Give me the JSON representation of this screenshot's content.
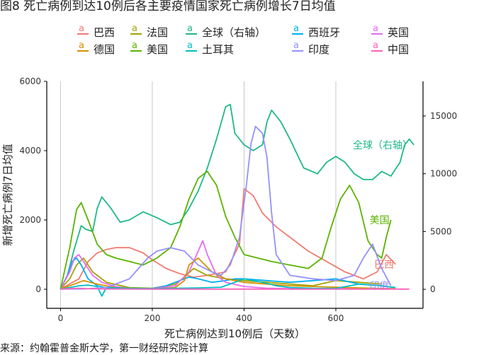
{
  "title": "图8 死亡病例到达10例后各主要疫情国家死亡病例增长7日均值",
  "source": "来源：约翰霍普金斯大学，第一财经研究院计算",
  "chart_data": {
    "type": "line",
    "xlabel": "死亡病例达到10例后（天数）",
    "ylabel": "新增死亡病例7日均值",
    "xlim": [
      -30,
      790
    ],
    "ylim": [
      -550,
      6000
    ],
    "y2lim": [
      -1650,
      18000
    ],
    "xticks": [
      0,
      200,
      400,
      600
    ],
    "yticks": [
      0,
      2000,
      4000,
      6000
    ],
    "y2ticks": [
      0,
      5000,
      10000,
      15000
    ],
    "grid": "vertical",
    "legend_position": "top",
    "series": [
      {
        "name": "巴西",
        "color": "#F07C73",
        "axis": "left",
        "end_label": "巴西",
        "x": [
          0,
          40,
          60,
          80,
          100,
          120,
          150,
          180,
          200,
          230,
          260,
          290,
          320,
          360,
          390,
          400,
          420,
          440,
          470,
          500,
          540,
          580,
          620,
          660,
          690,
          710,
          730
        ],
        "y": [
          5,
          300,
          800,
          1050,
          1150,
          1200,
          1200,
          1050,
          850,
          600,
          450,
          350,
          400,
          500,
          1300,
          2900,
          2700,
          2200,
          1800,
          1500,
          1100,
          800,
          500,
          300,
          500,
          1000,
          720
        ]
      },
      {
        "name": "法国",
        "color": "#A3A500",
        "axis": "left",
        "x": [
          0,
          20,
          35,
          50,
          70,
          100,
          150,
          200,
          250,
          270,
          290,
          320,
          340,
          360,
          400,
          450,
          500,
          550,
          600,
          650,
          700
        ],
        "y": [
          5,
          300,
          700,
          900,
          500,
          200,
          50,
          30,
          150,
          350,
          600,
          400,
          350,
          300,
          250,
          200,
          150,
          100,
          250,
          200,
          150
        ]
      },
      {
        "name": "全球（右轴）",
        "color": "#1FB88A",
        "axis": "right",
        "end_label": "全球（右轴）",
        "x": [
          0,
          15,
          30,
          45,
          55,
          70,
          80,
          90,
          110,
          130,
          150,
          180,
          210,
          240,
          260,
          280,
          300,
          320,
          340,
          360,
          370,
          380,
          400,
          420,
          440,
          450,
          460,
          480,
          500,
          530,
          560,
          580,
          600,
          620,
          640,
          660,
          680,
          700,
          720,
          740,
          750,
          760,
          770
        ],
        "y": [
          20,
          1200,
          3500,
          5500,
          5200,
          5000,
          7000,
          8000,
          7000,
          5800,
          6000,
          6700,
          6200,
          5600,
          5800,
          7000,
          8500,
          10500,
          13000,
          15800,
          16000,
          13500,
          12500,
          12000,
          12500,
          14500,
          15500,
          14500,
          13000,
          10500,
          10000,
          11000,
          11500,
          11000,
          10000,
          9500,
          9500,
          10200,
          9800,
          11000,
          12500,
          13000,
          12500
        ]
      },
      {
        "name": "西班牙",
        "color": "#00B0F6",
        "axis": "left",
        "x": [
          0,
          15,
          25,
          35,
          45,
          60,
          80,
          100,
          150,
          200,
          230,
          260,
          280,
          300,
          330,
          360,
          380,
          400,
          450,
          500,
          550,
          600,
          650,
          700,
          730
        ],
        "y": [
          5,
          400,
          800,
          900,
          700,
          300,
          100,
          40,
          20,
          20,
          100,
          250,
          350,
          300,
          200,
          250,
          300,
          300,
          250,
          200,
          250,
          300,
          150,
          100,
          50
        ]
      },
      {
        "name": "英国",
        "color": "#E76BF3",
        "axis": "left",
        "x": [
          0,
          20,
          30,
          40,
          50,
          70,
          90,
          120,
          150,
          200,
          250,
          280,
          300,
          310,
          320,
          340,
          360,
          400,
          450,
          500,
          550,
          600,
          650,
          700,
          730
        ],
        "y": [
          5,
          500,
          900,
          1000,
          800,
          400,
          200,
          80,
          30,
          20,
          100,
          500,
          1100,
          1400,
          1000,
          400,
          200,
          80,
          30,
          20,
          15,
          20,
          30,
          25,
          20
        ]
      },
      {
        "name": "德国",
        "color": "#D39200",
        "axis": "left",
        "x": [
          0,
          30,
          50,
          80,
          120,
          200,
          250,
          270,
          280,
          300,
          330,
          360,
          400,
          450,
          500,
          550,
          600,
          650,
          700,
          730
        ],
        "y": [
          5,
          150,
          250,
          150,
          50,
          10,
          50,
          250,
          700,
          900,
          500,
          300,
          200,
          150,
          100,
          80,
          60,
          40,
          20,
          15
        ]
      },
      {
        "name": "美国",
        "color": "#5BB300",
        "axis": "left",
        "end_label": "美国",
        "x": [
          0,
          20,
          35,
          45,
          60,
          80,
          100,
          120,
          150,
          180,
          210,
          240,
          260,
          280,
          300,
          320,
          340,
          360,
          380,
          400,
          430,
          460,
          500,
          540,
          570,
          590,
          610,
          630,
          650,
          670,
          690,
          700,
          710,
          720
        ],
        "y": [
          5,
          1200,
          2300,
          2500,
          2000,
          1300,
          1000,
          900,
          800,
          700,
          900,
          1200,
          1800,
          2600,
          3200,
          3400,
          3000,
          2100,
          1500,
          1000,
          900,
          800,
          700,
          600,
          900,
          1800,
          2600,
          3000,
          2500,
          1400,
          1000,
          900,
          1500,
          2000
        ]
      },
      {
        "name": "土耳其",
        "color": "#00BFC4",
        "axis": "left",
        "x": [
          0,
          20,
          40,
          60,
          80,
          90,
          100,
          150,
          200,
          250,
          300,
          350,
          380,
          400,
          420,
          440,
          470,
          500,
          550,
          600,
          650,
          700,
          730
        ],
        "y": [
          5,
          50,
          100,
          120,
          80,
          -200,
          50,
          30,
          20,
          30,
          40,
          60,
          200,
          300,
          250,
          200,
          100,
          50,
          30,
          25,
          150,
          100,
          50
        ]
      },
      {
        "name": "印度",
        "color": "#9590FF",
        "axis": "left",
        "end_label": "印度",
        "x": [
          0,
          50,
          100,
          150,
          170,
          190,
          210,
          240,
          270,
          300,
          330,
          350,
          370,
          390,
          405,
          415,
          425,
          440,
          450,
          460,
          470,
          500,
          550,
          600,
          640,
          660,
          680,
          700,
          720
        ],
        "y": [
          5,
          10,
          50,
          300,
          600,
          900,
          1100,
          1200,
          1100,
          700,
          500,
          400,
          700,
          1500,
          3000,
          4200,
          4700,
          4500,
          3800,
          2200,
          1000,
          400,
          300,
          250,
          400,
          900,
          1300,
          600,
          100
        ]
      },
      {
        "name": "中国",
        "color": "#FF62BC",
        "axis": "left",
        "x": [
          0,
          20,
          40,
          60,
          100,
          200,
          300,
          400,
          500,
          600,
          700,
          740,
          760
        ],
        "y": [
          5,
          20,
          30,
          15,
          10,
          5,
          5,
          5,
          5,
          5,
          5,
          5,
          5
        ]
      }
    ]
  }
}
